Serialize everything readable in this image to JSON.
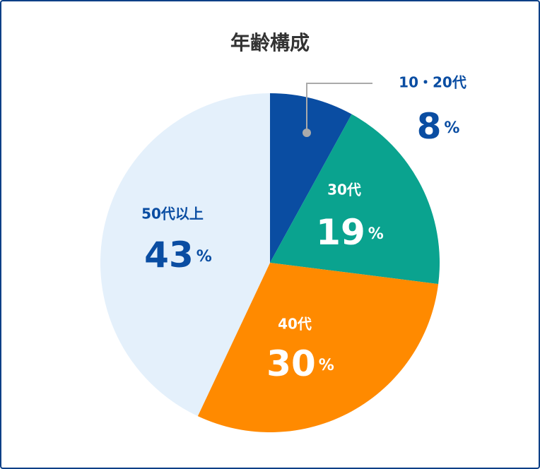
{
  "chart_data": {
    "type": "pie",
    "title": "年齢構成",
    "categories": [
      "10・20代",
      "30代",
      "40代",
      "50代以上"
    ],
    "values": [
      8,
      19,
      30,
      43
    ],
    "value_labels": [
      "8%",
      "19%",
      "30%",
      "43%"
    ],
    "colors": [
      "#0a4da2",
      "#0aa38f",
      "#ff8a00",
      "#e4f0fb"
    ]
  }
}
